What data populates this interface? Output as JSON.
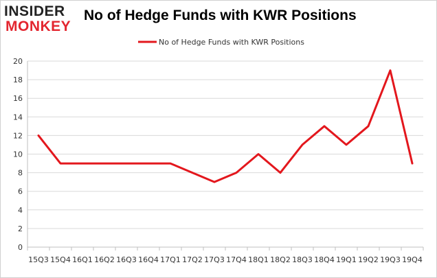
{
  "logo": {
    "line1": "INSIDER",
    "line2": "MONKEY"
  },
  "colors": {
    "series": "#e3171d",
    "grid": "#d9d9d9",
    "axis": "#bfbfbf",
    "logo_accent": "#e3262f"
  },
  "chart_data": {
    "type": "line",
    "title": "No of Hedge Funds with KWR Positions",
    "xlabel": "",
    "ylabel": "",
    "categories": [
      "15Q3",
      "15Q4",
      "16Q1",
      "16Q2",
      "16Q3",
      "16Q4",
      "17Q1",
      "17Q2",
      "17Q3",
      "17Q4",
      "18Q1",
      "18Q2",
      "18Q3",
      "18Q4",
      "19Q1",
      "19Q2",
      "19Q3",
      "19Q4"
    ],
    "series": [
      {
        "name": "No of Hedge Funds with KWR Positions",
        "values": [
          12,
          9,
          9,
          9,
          9,
          9,
          9,
          8,
          7,
          8,
          10,
          8,
          11,
          13,
          11,
          13,
          19,
          9
        ]
      }
    ],
    "ylim": [
      0,
      20
    ],
    "yticks": [
      0,
      2,
      4,
      6,
      8,
      10,
      12,
      14,
      16,
      18,
      20
    ],
    "grid": true,
    "legend": "top-center"
  }
}
